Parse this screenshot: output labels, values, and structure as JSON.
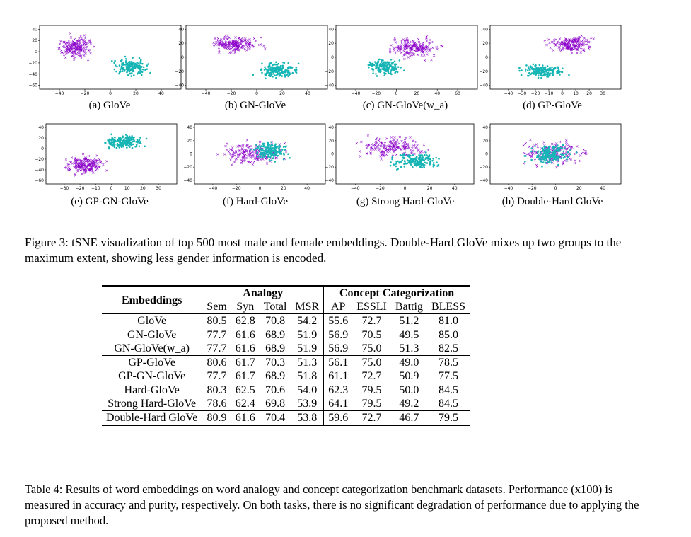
{
  "figure": {
    "panels": [
      {
        "label": "(a) GloVe",
        "xticks": [
          "−40",
          "−20",
          "0",
          "20",
          "40"
        ],
        "yticks": [
          "40",
          "20",
          "0",
          "−20",
          "−40",
          "−60"
        ]
      },
      {
        "label": "(b) GN-GloVe",
        "xticks": [
          "−40",
          "−20",
          "0",
          "20",
          "40"
        ],
        "yticks": [
          "40",
          "20",
          "0",
          "−20",
          "−40"
        ]
      },
      {
        "label": "(c) GN-GloVe(w_a)",
        "xticks": [
          "−40",
          "−20",
          "0",
          "20",
          "40",
          "60"
        ],
        "yticks": [
          "40",
          "20",
          "0",
          "−20",
          "−40"
        ]
      },
      {
        "label": "(d) GP-GloVe",
        "xticks": [
          "−40",
          "−30",
          "−20",
          "−10",
          "0",
          "10",
          "20",
          "30"
        ],
        "yticks": [
          "40",
          "20",
          "0",
          "−20",
          "−40"
        ]
      },
      {
        "label": "(e) GP-GN-GloVe",
        "xticks": [
          "−30",
          "−20",
          "−10",
          "0",
          "10",
          "20",
          "30"
        ],
        "yticks": [
          "40",
          "20",
          "0",
          "−20",
          "−40",
          "−60"
        ]
      },
      {
        "label": "(f) Hard-GloVe",
        "xticks": [
          "−40",
          "−20",
          "0",
          "20",
          "40"
        ],
        "yticks": [
          "40",
          "20",
          "0",
          "−20",
          "−40"
        ]
      },
      {
        "label": "(g) Strong Hard-GloVe",
        "xticks": [
          "−40",
          "−20",
          "0",
          "20",
          "40"
        ],
        "yticks": [
          "40",
          "20",
          "0",
          "−20",
          "−40"
        ]
      },
      {
        "label": "(h) Double-Hard GloVe",
        "xticks": [
          "−40",
          "−20",
          "0",
          "20",
          "40"
        ],
        "yticks": [
          "40",
          "20",
          "0",
          "−20",
          "−40"
        ]
      }
    ],
    "colors": {
      "male": "#8b00c9",
      "female": "#17b5b5"
    },
    "caption": "Figure 3: tSNE visualization of top 500 most male and female embeddings. Double-Hard GloVe mixes up two groups to the maximum extent, showing less gender information is encoded."
  },
  "table": {
    "header": {
      "embeddings": "Embeddings",
      "analogy": "Analogy",
      "concept": "Concept Categorization",
      "cols": [
        "Sem",
        "Syn",
        "Total",
        "MSR",
        "AP",
        "ESSLI",
        "Battig",
        "BLESS"
      ]
    },
    "rows": [
      {
        "name": "GloVe",
        "v": [
          "80.5",
          "62.8",
          "70.8",
          "54.2",
          "55.6",
          "72.7",
          "51.2",
          "81.0"
        ]
      },
      {
        "name": "GN-GloVe",
        "v": [
          "77.7",
          "61.6",
          "68.9",
          "51.9",
          "56.9",
          "70.5",
          "49.5",
          "85.0"
        ]
      },
      {
        "name": "GN-GloVe(w_a)",
        "v": [
          "77.7",
          "61.6",
          "68.9",
          "51.9",
          "56.9",
          "75.0",
          "51.3",
          "82.5"
        ]
      },
      {
        "name": "GP-GloVe",
        "v": [
          "80.6",
          "61.7",
          "70.3",
          "51.3",
          "56.1",
          "75.0",
          "49.0",
          "78.5"
        ]
      },
      {
        "name": "GP-GN-GloVe",
        "v": [
          "77.7",
          "61.7",
          "68.9",
          "51.8",
          "61.1",
          "72.7",
          "50.9",
          "77.5"
        ]
      },
      {
        "name": "Hard-GloVe",
        "v": [
          "80.3",
          "62.5",
          "70.6",
          "54.0",
          "62.3",
          "79.5",
          "50.0",
          "84.5"
        ]
      },
      {
        "name": "Strong Hard-GloVe",
        "v": [
          "78.6",
          "62.4",
          "69.8",
          "53.9",
          "64.1",
          "79.5",
          "49.2",
          "84.5"
        ]
      },
      {
        "name": "Double-Hard GloVe",
        "v": [
          "80.9",
          "61.6",
          "70.4",
          "53.8",
          "59.6",
          "72.7",
          "46.7",
          "79.5"
        ]
      }
    ],
    "caption": "Table 4: Results of word embeddings on word analogy and concept categorization benchmark datasets. Performance (x100) is measured in accuracy and purity, respectively. On both tasks, there is no significant degradation of performance due to applying the proposed method."
  }
}
